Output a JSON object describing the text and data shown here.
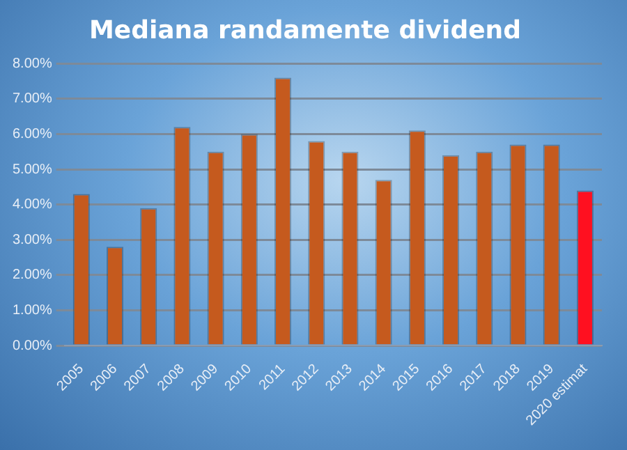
{
  "chart_data": {
    "type": "bar",
    "title": "Mediana randamente dividend",
    "categories": [
      "2005",
      "2006",
      "2007",
      "2008",
      "2009",
      "2010",
      "2011",
      "2012",
      "2013",
      "2014",
      "2015",
      "2016",
      "2017",
      "2018",
      "2019",
      "2020 estimat"
    ],
    "values": [
      4.3,
      2.8,
      3.9,
      6.2,
      5.5,
      6.0,
      7.6,
      5.8,
      5.5,
      4.7,
      6.1,
      5.4,
      5.5,
      5.7,
      5.7,
      4.4
    ],
    "colors": [
      "#c55a1e",
      "#c55a1e",
      "#c55a1e",
      "#c55a1e",
      "#c55a1e",
      "#c55a1e",
      "#c55a1e",
      "#c55a1e",
      "#c55a1e",
      "#c55a1e",
      "#c55a1e",
      "#c55a1e",
      "#c55a1e",
      "#c55a1e",
      "#c55a1e",
      "#ff1020"
    ],
    "ylim": [
      0,
      8
    ],
    "yticks": [
      {
        "value": 0,
        "label": "0.00%"
      },
      {
        "value": 1,
        "label": "1.00%"
      },
      {
        "value": 2,
        "label": "2.00%"
      },
      {
        "value": 3,
        "label": "3.00%"
      },
      {
        "value": 4,
        "label": "4.00%"
      },
      {
        "value": 5,
        "label": "5.00%"
      },
      {
        "value": 6,
        "label": "6.00%"
      },
      {
        "value": 7,
        "label": "7.00%"
      },
      {
        "value": 8,
        "label": "8.00%"
      }
    ],
    "grid": "y",
    "legend": false
  }
}
